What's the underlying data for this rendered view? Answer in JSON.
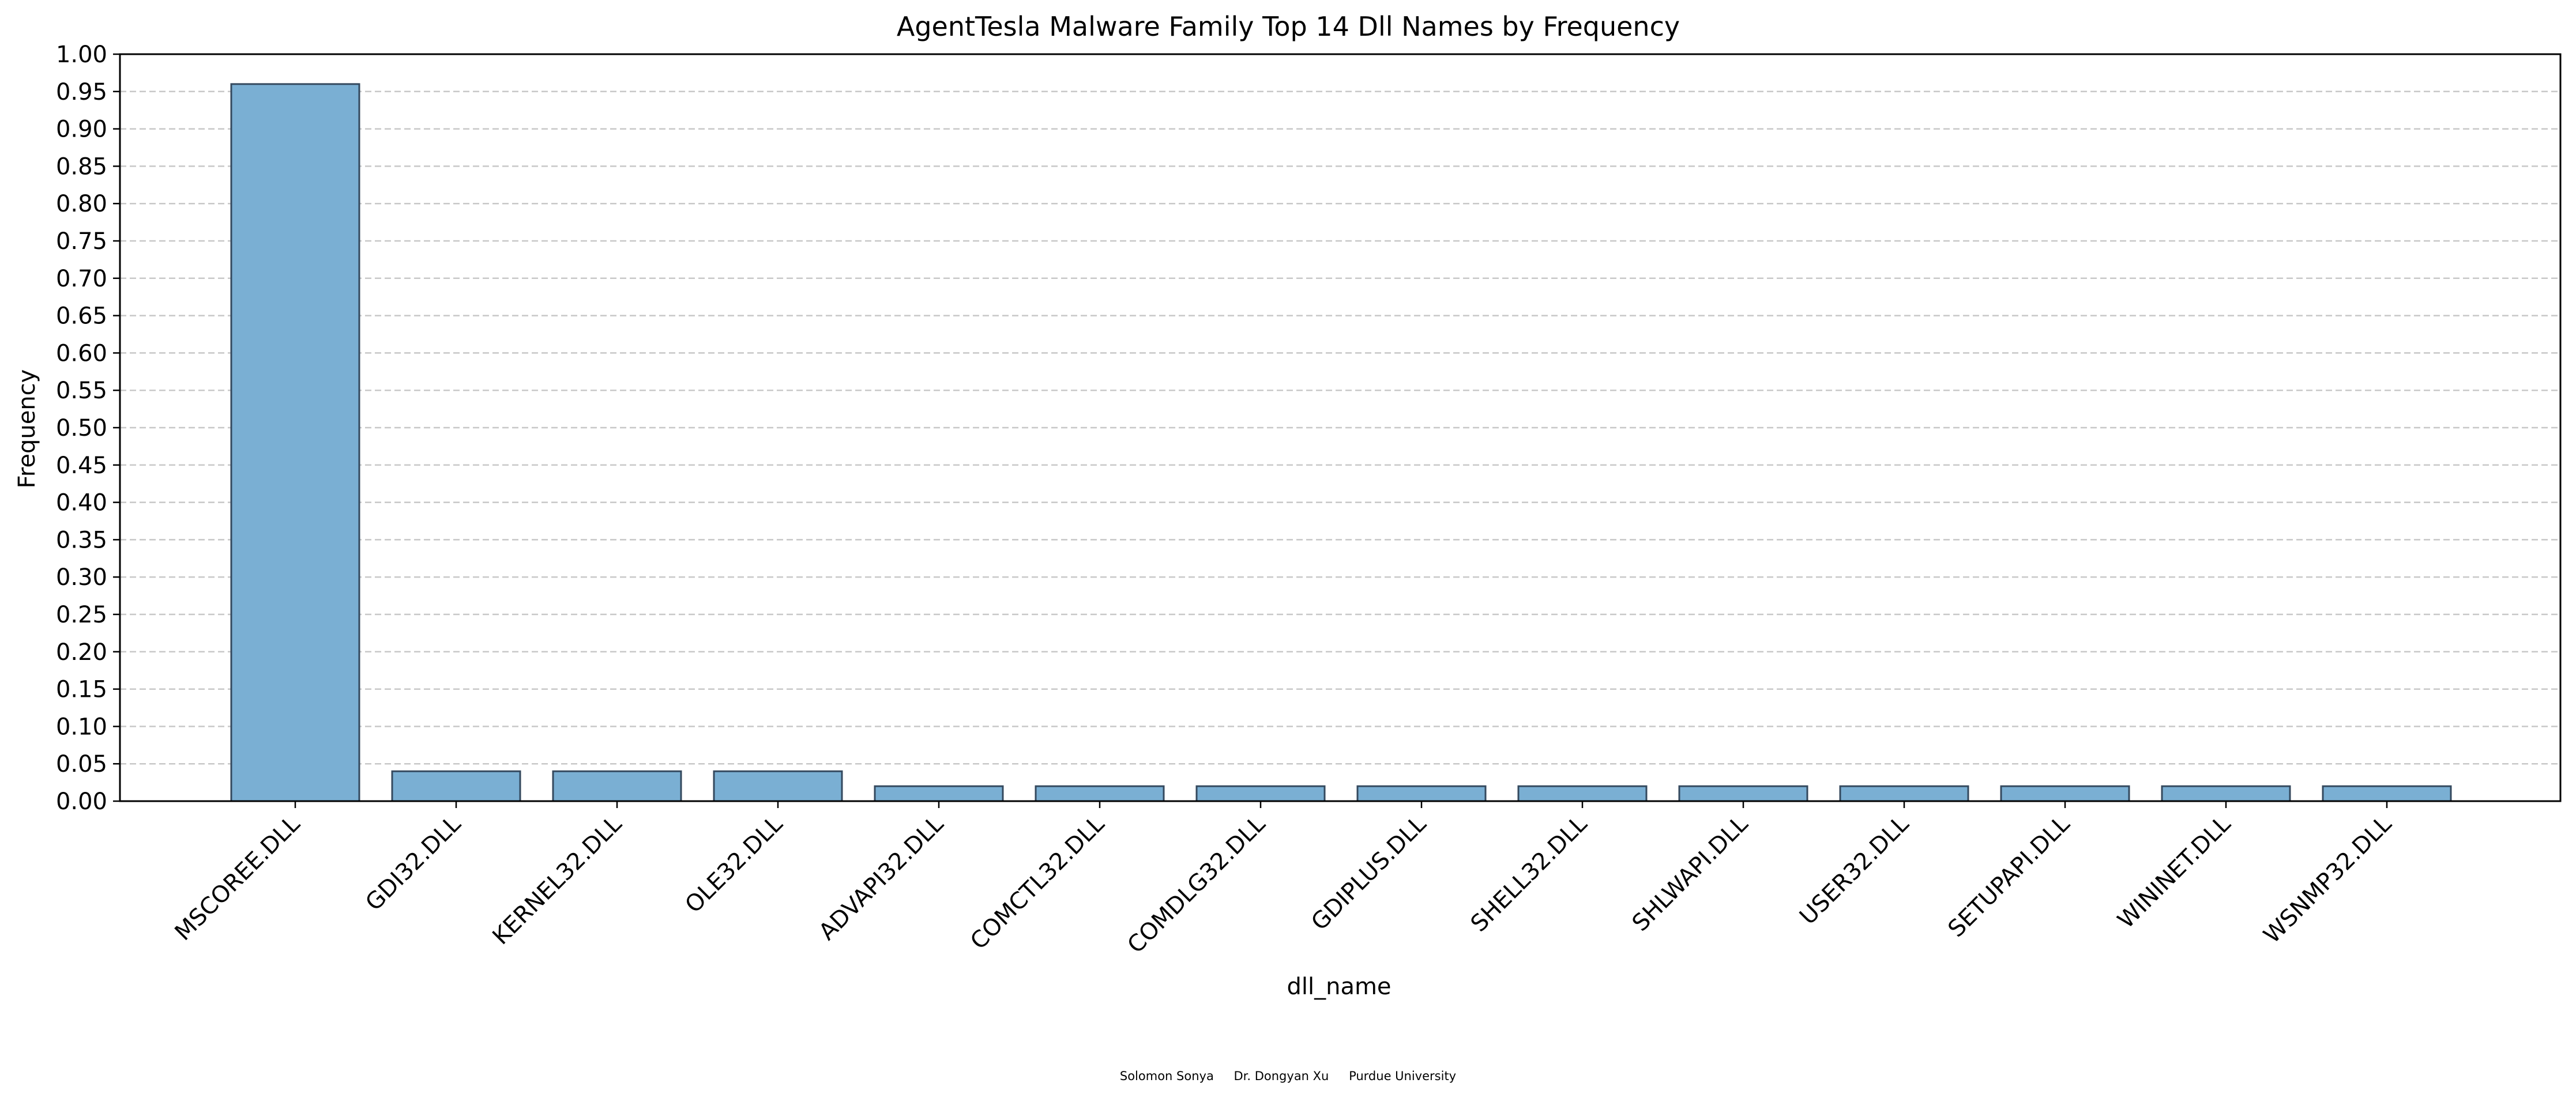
{
  "chart_data": {
    "type": "bar",
    "title": "AgentTesla Malware Family Top 14 Dll Names by Frequency",
    "xlabel": "dll_name",
    "ylabel": "Frequency",
    "categories": [
      "MSCOREE.DLL",
      "GDI32.DLL",
      "KERNEL32.DLL",
      "OLE32.DLL",
      "ADVAPI32.DLL",
      "COMCTL32.DLL",
      "COMDLG32.DLL",
      "GDIPLUS.DLL",
      "SHELL32.DLL",
      "SHLWAPI.DLL",
      "USER32.DLL",
      "SETUPAPI.DLL",
      "WININET.DLL",
      "WSNMP32.DLL"
    ],
    "values": [
      0.96,
      0.04,
      0.04,
      0.04,
      0.02,
      0.02,
      0.02,
      0.02,
      0.02,
      0.02,
      0.02,
      0.02,
      0.02,
      0.02
    ],
    "ylim": [
      0,
      1.0
    ],
    "yticks": [
      "0.00",
      "0.05",
      "0.10",
      "0.15",
      "0.20",
      "0.25",
      "0.30",
      "0.35",
      "0.40",
      "0.45",
      "0.50",
      "0.55",
      "0.60",
      "0.65",
      "0.70",
      "0.75",
      "0.80",
      "0.85",
      "0.90",
      "0.95",
      "1.00"
    ],
    "grid": "y-dashed",
    "bar_color": "#7aafd3",
    "bar_edge": "#34495e"
  },
  "credits": {
    "author1": "Solomon Sonya",
    "author2": "Dr. Dongyan Xu",
    "org": "Purdue University"
  }
}
